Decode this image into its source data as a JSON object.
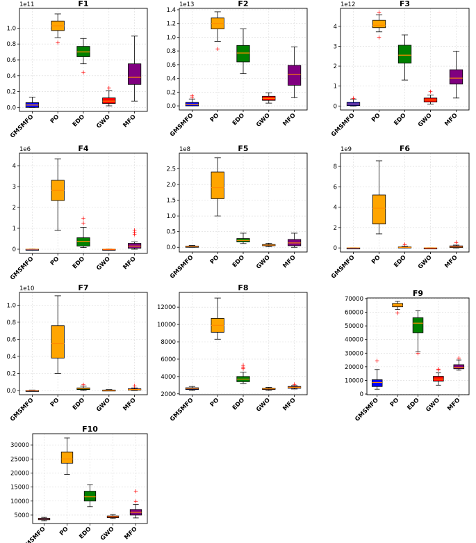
{
  "figure": {
    "colors": {
      "GMSMFO": "#0000ff",
      "PO": "#ffa500",
      "EDO": "#008000",
      "GWO": "#ff0000",
      "MFO": "#800080",
      "median": "#ff8c00",
      "outlier": "#ff0000",
      "whisker": "#000000",
      "grid": "#d9d9d9"
    }
  },
  "chart_data": [
    {
      "type": "box",
      "title": "F1",
      "offset_label": "1e11",
      "categories": [
        "GMSMFO",
        "PO",
        "EDO",
        "GWO",
        "MFO"
      ],
      "ylim": [
        -0.05,
        1.25
      ],
      "yticks": [
        0.0,
        0.2,
        0.4,
        0.6,
        0.8,
        1.0
      ],
      "ytick_labels": [
        "0.0",
        "0.2",
        "0.4",
        "0.6",
        "0.8",
        "1.0"
      ],
      "boxes": [
        {
          "min": 0.0,
          "q1": 0.0,
          "median": 0.03,
          "q3": 0.06,
          "max": 0.13,
          "outliers": []
        },
        {
          "min": 0.88,
          "q1": 0.97,
          "median": 1.03,
          "q3": 1.09,
          "max": 1.18,
          "outliers": [
            0.82
          ]
        },
        {
          "min": 0.55,
          "q1": 0.64,
          "median": 0.7,
          "q3": 0.77,
          "max": 0.87,
          "outliers": [
            0.44
          ]
        },
        {
          "min": 0.02,
          "q1": 0.05,
          "median": 0.08,
          "q3": 0.12,
          "max": 0.21,
          "outliers": [
            0.25
          ]
        },
        {
          "min": 0.08,
          "q1": 0.29,
          "median": 0.38,
          "q3": 0.55,
          "max": 0.9,
          "outliers": []
        }
      ]
    },
    {
      "type": "box",
      "title": "F2",
      "offset_label": "1e13",
      "categories": [
        "GMSMFO",
        "PO",
        "EDO",
        "GWO",
        "MFO"
      ],
      "ylim": [
        -0.06,
        1.42
      ],
      "yticks": [
        0.0,
        0.2,
        0.4,
        0.6,
        0.8,
        1.0,
        1.2,
        1.4
      ],
      "ytick_labels": [
        "0.0",
        "0.2",
        "0.4",
        "0.6",
        "0.8",
        "1.0",
        "1.2",
        "1.4"
      ],
      "boxes": [
        {
          "min": 0.0,
          "q1": 0.0,
          "median": 0.02,
          "q3": 0.05,
          "max": 0.1,
          "outliers": [
            0.13,
            0.15
          ]
        },
        {
          "min": 0.94,
          "q1": 1.12,
          "median": 1.2,
          "q3": 1.28,
          "max": 1.37,
          "outliers": [
            0.83
          ]
        },
        {
          "min": 0.47,
          "q1": 0.64,
          "median": 0.77,
          "q3": 0.88,
          "max": 1.12,
          "outliers": []
        },
        {
          "min": 0.04,
          "q1": 0.08,
          "median": 0.11,
          "q3": 0.14,
          "max": 0.19,
          "outliers": []
        },
        {
          "min": 0.12,
          "q1": 0.3,
          "median": 0.46,
          "q3": 0.59,
          "max": 0.86,
          "outliers": []
        }
      ]
    },
    {
      "type": "box",
      "title": "F3",
      "offset_label": "1e12",
      "categories": [
        "GMSMFO",
        "PO",
        "EDO",
        "GWO",
        "MFO"
      ],
      "ylim": [
        -0.2,
        4.9
      ],
      "yticks": [
        0,
        1,
        2,
        3,
        4
      ],
      "ytick_labels": [
        "0",
        "1",
        "2",
        "3",
        "4"
      ],
      "boxes": [
        {
          "min": 0.0,
          "q1": 0.02,
          "median": 0.1,
          "q3": 0.18,
          "max": 0.35,
          "outliers": [
            0.4
          ]
        },
        {
          "min": 3.72,
          "q1": 3.93,
          "median": 4.05,
          "q3": 4.3,
          "max": 4.58,
          "outliers": [
            3.45,
            4.7
          ]
        },
        {
          "min": 1.3,
          "q1": 2.15,
          "median": 2.55,
          "q3": 3.05,
          "max": 3.57,
          "outliers": []
        },
        {
          "min": 0.1,
          "q1": 0.2,
          "median": 0.3,
          "q3": 0.4,
          "max": 0.55,
          "outliers": [
            0.72
          ]
        },
        {
          "min": 0.4,
          "q1": 1.1,
          "median": 1.4,
          "q3": 1.82,
          "max": 2.75,
          "outliers": []
        }
      ]
    },
    {
      "type": "box",
      "title": "F4",
      "offset_label": "1e6",
      "categories": [
        "GMSMFO",
        "PO",
        "EDO",
        "GWO",
        "MFO"
      ],
      "ylim": [
        -0.2,
        4.6
      ],
      "yticks": [
        0,
        1,
        2,
        3,
        4
      ],
      "ytick_labels": [
        "0",
        "1",
        "2",
        "3",
        "4"
      ],
      "boxes": [
        {
          "min": 0.0,
          "q1": 0.0,
          "median": 0.0,
          "q3": 0.0,
          "max": 0.01,
          "outliers": []
        },
        {
          "min": 0.9,
          "q1": 2.33,
          "median": 2.82,
          "q3": 3.3,
          "max": 4.33,
          "outliers": []
        },
        {
          "min": 0.08,
          "q1": 0.15,
          "median": 0.38,
          "q3": 0.55,
          "max": 1.05,
          "outliers": [
            1.25,
            1.48
          ]
        },
        {
          "min": 0.0,
          "q1": 0.0,
          "median": 0.0,
          "q3": 0.0,
          "max": 0.01,
          "outliers": []
        },
        {
          "min": 0.0,
          "q1": 0.05,
          "median": 0.15,
          "q3": 0.28,
          "max": 0.35,
          "outliers": [
            0.72,
            0.82,
            0.92
          ]
        }
      ]
    },
    {
      "type": "box",
      "title": "F5",
      "offset_label": "1e8",
      "categories": [
        "GMSMFO",
        "PO",
        "EDO",
        "GWO",
        "MFO"
      ],
      "ylim": [
        -0.15,
        3.0
      ],
      "yticks": [
        0.0,
        0.5,
        1.0,
        1.5,
        2.0,
        2.5
      ],
      "ytick_labels": [
        "0.0",
        "0.5",
        "1.0",
        "1.5",
        "2.0",
        "2.5"
      ],
      "boxes": [
        {
          "min": 0.0,
          "q1": 0.0,
          "median": 0.02,
          "q3": 0.04,
          "max": 0.06,
          "outliers": []
        },
        {
          "min": 1.0,
          "q1": 1.55,
          "median": 1.9,
          "q3": 2.4,
          "max": 2.85,
          "outliers": []
        },
        {
          "min": 0.12,
          "q1": 0.17,
          "median": 0.22,
          "q3": 0.28,
          "max": 0.45,
          "outliers": []
        },
        {
          "min": 0.02,
          "q1": 0.05,
          "median": 0.07,
          "q3": 0.09,
          "max": 0.13,
          "outliers": []
        },
        {
          "min": 0.0,
          "q1": 0.05,
          "median": 0.14,
          "q3": 0.25,
          "max": 0.45,
          "outliers": []
        }
      ]
    },
    {
      "type": "box",
      "title": "F6",
      "offset_label": "1e9",
      "categories": [
        "GMSMFO",
        "PO",
        "EDO",
        "GWO",
        "MFO"
      ],
      "ylim": [
        -0.4,
        9.3
      ],
      "yticks": [
        0,
        2,
        4,
        6,
        8
      ],
      "ytick_labels": [
        "0",
        "2",
        "4",
        "6",
        "8"
      ],
      "boxes": [
        {
          "min": 0.0,
          "q1": 0.0,
          "median": 0.0,
          "q3": 0.0,
          "max": 0.02,
          "outliers": []
        },
        {
          "min": 1.38,
          "q1": 2.35,
          "median": 3.9,
          "q3": 5.2,
          "max": 8.55,
          "outliers": []
        },
        {
          "min": 0.0,
          "q1": 0.02,
          "median": 0.05,
          "q3": 0.1,
          "max": 0.18,
          "outliers": [
            0.35
          ]
        },
        {
          "min": 0.0,
          "q1": 0.0,
          "median": 0.0,
          "q3": 0.0,
          "max": 0.02,
          "outliers": []
        },
        {
          "min": 0.0,
          "q1": 0.04,
          "median": 0.1,
          "q3": 0.2,
          "max": 0.28,
          "outliers": [
            0.55
          ]
        }
      ]
    },
    {
      "type": "box",
      "title": "F7",
      "offset_label": "1e10",
      "categories": [
        "GMSMFO",
        "PO",
        "EDO",
        "GWO",
        "MFO"
      ],
      "ylim": [
        -0.05,
        1.15
      ],
      "yticks": [
        0.0,
        0.2,
        0.4,
        0.6,
        0.8,
        1.0
      ],
      "ytick_labels": [
        "0.0",
        "0.2",
        "0.4",
        "0.6",
        "0.8",
        "1.0"
      ],
      "boxes": [
        {
          "min": 0.0,
          "q1": 0.0,
          "median": 0.0,
          "q3": 0.0,
          "max": 0.005,
          "outliers": []
        },
        {
          "min": 0.2,
          "q1": 0.38,
          "median": 0.55,
          "q3": 0.76,
          "max": 1.11,
          "outliers": []
        },
        {
          "min": 0.0,
          "q1": 0.01,
          "median": 0.02,
          "q3": 0.03,
          "max": 0.05,
          "outliers": [
            0.07
          ]
        },
        {
          "min": 0.0,
          "q1": 0.0,
          "median": 0.0,
          "q3": 0.005,
          "max": 0.01,
          "outliers": []
        },
        {
          "min": 0.0,
          "q1": 0.005,
          "median": 0.01,
          "q3": 0.02,
          "max": 0.03,
          "outliers": [
            0.055
          ]
        }
      ]
    },
    {
      "type": "box",
      "title": "F8",
      "offset_label": "",
      "categories": [
        "GMSMFO",
        "PO",
        "EDO",
        "GWO",
        "MFO"
      ],
      "ylim": [
        1900,
        13700
      ],
      "yticks": [
        2000,
        4000,
        6000,
        8000,
        10000,
        12000
      ],
      "ytick_labels": [
        "2000",
        "4000",
        "6000",
        "8000",
        "10000",
        "12000"
      ],
      "boxes": [
        {
          "min": 2400,
          "q1": 2500,
          "median": 2600,
          "q3": 2700,
          "max": 2850,
          "outliers": []
        },
        {
          "min": 8300,
          "q1": 9100,
          "median": 9900,
          "q3": 10700,
          "max": 13050,
          "outliers": []
        },
        {
          "min": 3200,
          "q1": 3400,
          "median": 3700,
          "q3": 4000,
          "max": 4500,
          "outliers": [
            4900,
            5100,
            5300
          ]
        },
        {
          "min": 2400,
          "q1": 2500,
          "median": 2580,
          "q3": 2650,
          "max": 2750,
          "outliers": []
        },
        {
          "min": 2550,
          "q1": 2650,
          "median": 2750,
          "q3": 2850,
          "max": 2950,
          "outliers": [
            3100
          ]
        }
      ]
    },
    {
      "type": "box",
      "title": "F9",
      "offset_label": "",
      "categories": [
        "GMSMFO",
        "PO",
        "EDO",
        "GWO",
        "MFO"
      ],
      "ylim": [
        -500,
        70500
      ],
      "yticks": [
        0,
        10000,
        20000,
        30000,
        40000,
        50000,
        60000,
        70000
      ],
      "ytick_labels": [
        "0",
        "10000",
        "20000",
        "30000",
        "40000",
        "50000",
        "60000",
        "70000"
      ],
      "boxes": [
        {
          "min": 3500,
          "q1": 5500,
          "median": 8500,
          "q3": 10500,
          "max": 18000,
          "outliers": [
            24500
          ]
        },
        {
          "min": 62000,
          "q1": 64000,
          "median": 65000,
          "q3": 66500,
          "max": 68000,
          "outliers": [
            59500
          ]
        },
        {
          "min": 31000,
          "q1": 45000,
          "median": 52000,
          "q3": 56000,
          "max": 61000,
          "outliers": [
            30000
          ]
        },
        {
          "min": 6500,
          "q1": 9500,
          "median": 11000,
          "q3": 13000,
          "max": 15500,
          "outliers": [
            18000,
            18500
          ]
        },
        {
          "min": 17500,
          "q1": 18500,
          "median": 19500,
          "q3": 21500,
          "max": 25000,
          "outliers": [
            26500
          ]
        }
      ]
    },
    {
      "type": "box",
      "title": "F10",
      "offset_label": "",
      "categories": [
        "GMSMFO",
        "PO",
        "EDO",
        "GWO",
        "MFO"
      ],
      "ylim": [
        2000,
        34000
      ],
      "yticks": [
        5000,
        10000,
        15000,
        20000,
        25000,
        30000
      ],
      "ytick_labels": [
        "5000",
        "10000",
        "15000",
        "20000",
        "25000",
        "30000"
      ],
      "boxes": [
        {
          "min": 3000,
          "q1": 3300,
          "median": 3600,
          "q3": 3900,
          "max": 4200,
          "outliers": []
        },
        {
          "min": 19500,
          "q1": 23500,
          "median": 25000,
          "q3": 27500,
          "max": 32500,
          "outliers": []
        },
        {
          "min": 8000,
          "q1": 10000,
          "median": 11500,
          "q3": 13500,
          "max": 15800,
          "outliers": []
        },
        {
          "min": 3800,
          "q1": 4100,
          "median": 4400,
          "q3": 4700,
          "max": 5200,
          "outliers": []
        },
        {
          "min": 4000,
          "q1": 5000,
          "median": 6000,
          "q3": 7000,
          "max": 8800,
          "outliers": [
            10000,
            13500
          ]
        }
      ]
    }
  ]
}
